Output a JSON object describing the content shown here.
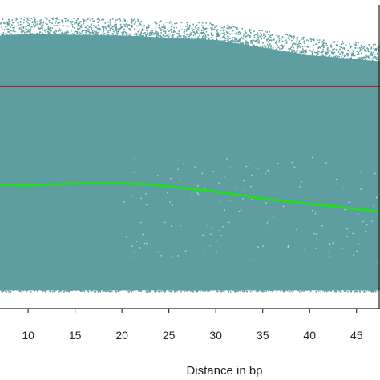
{
  "chart_data": {
    "type": "scatter",
    "title": "",
    "xlabel": "Distance in bp",
    "ylabel": "",
    "xlim": [
      7,
      47.5
    ],
    "ylim": [
      0,
      1
    ],
    "x_ticks": [
      10,
      15,
      20,
      25,
      30,
      35,
      40,
      45
    ],
    "x_tick_labels": [
      "10",
      "15",
      "20",
      "25",
      "30",
      "35",
      "40",
      "45"
    ],
    "grid": false,
    "legend": "none",
    "scatter": {
      "color": "#5f9ea0",
      "y_top_by_x": [
        [
          7,
          0.925
        ],
        [
          10,
          0.93
        ],
        [
          20,
          0.925
        ],
        [
          30,
          0.91
        ],
        [
          40,
          0.86
        ],
        [
          47.5,
          0.84
        ]
      ],
      "y_bottom": 0.06
    },
    "series": [
      {
        "type": "hline",
        "color": "#b22222",
        "y": 0.732
      },
      {
        "type": "line",
        "color": "#22dd22",
        "x": [
          7,
          10,
          15,
          20,
          22.5,
          25,
          30,
          35,
          40,
          45,
          47.5
        ],
        "y": [
          0.408,
          0.405,
          0.412,
          0.412,
          0.41,
          0.402,
          0.385,
          0.362,
          0.345,
          0.328,
          0.318
        ]
      }
    ]
  }
}
